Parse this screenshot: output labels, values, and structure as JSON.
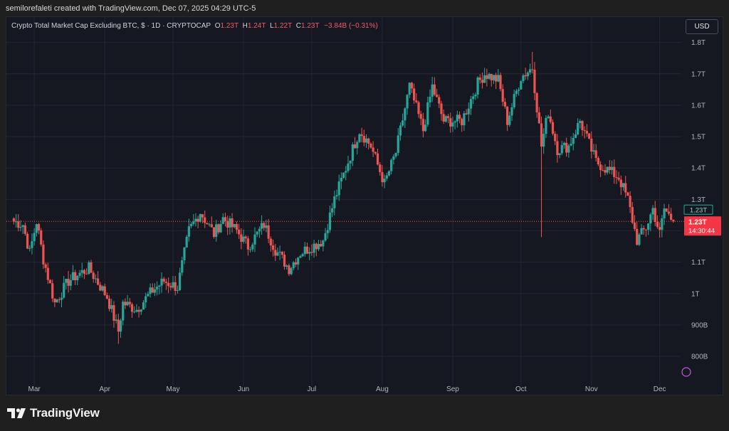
{
  "caption": "semilorefaleti created with TradingView.com, Dec 07, 2025 04:29 UTC-5",
  "legend": {
    "symbol": "Crypto Total Market Cap Excluding BTC, $ · 1D · CRYPTOCAP",
    "o_label": "O",
    "o_value": "1.23T",
    "h_label": "H",
    "h_value": "1.24T",
    "l_label": "L",
    "l_value": "1.22T",
    "c_label": "C",
    "c_value": "1.23T",
    "change": "−3.84B (−0.31%)"
  },
  "currency_button": "USD",
  "brand": "TradingView",
  "price_tags": {
    "prev_close": "1.23T",
    "last_price": "1.23T",
    "countdown": "14:30:44"
  },
  "chart_data": {
    "type": "candlestick",
    "x_ticks": [
      "Mar",
      "Apr",
      "May",
      "Jun",
      "Jul",
      "Aug",
      "Sep",
      "Oct",
      "Nov",
      "Dec"
    ],
    "y_ticks": [
      "800B",
      "900B",
      "1T",
      "1.1T",
      "1.2T",
      "1.3T",
      "1.4T",
      "1.5T",
      "1.6T",
      "1.7T",
      "1.8T"
    ],
    "y_tick_values": [
      0.8,
      0.9,
      1.0,
      1.1,
      1.2,
      1.3,
      1.4,
      1.5,
      1.6,
      1.7,
      1.8
    ],
    "ylim": [
      0.73,
      1.84
    ],
    "unit": "USD trillions",
    "last_value": 1.23,
    "colors": {
      "up": "#26a69a",
      "down": "#ef5350",
      "grid": "#232632",
      "axis_text": "#b2b5be"
    },
    "close_path": [
      {
        "date": "2025-02-20",
        "close": 1.23
      },
      {
        "date": "2025-02-24",
        "close": 1.22
      },
      {
        "date": "2025-02-27",
        "close": 1.13
      },
      {
        "date": "2025-03-02",
        "close": 1.23
      },
      {
        "date": "2025-03-05",
        "close": 1.11
      },
      {
        "date": "2025-03-10",
        "close": 0.97
      },
      {
        "date": "2025-03-16",
        "close": 1.04
      },
      {
        "date": "2025-03-20",
        "close": 1.06
      },
      {
        "date": "2025-03-25",
        "close": 1.08
      },
      {
        "date": "2025-04-02",
        "close": 0.99
      },
      {
        "date": "2025-04-07",
        "close": 0.88
      },
      {
        "date": "2025-04-09",
        "close": 0.97
      },
      {
        "date": "2025-04-15",
        "close": 0.95
      },
      {
        "date": "2025-04-22",
        "close": 1.01
      },
      {
        "date": "2025-04-27",
        "close": 1.04
      },
      {
        "date": "2025-05-03",
        "close": 1.02
      },
      {
        "date": "2025-05-08",
        "close": 1.2
      },
      {
        "date": "2025-05-13",
        "close": 1.26
      },
      {
        "date": "2025-05-19",
        "close": 1.19
      },
      {
        "date": "2025-05-23",
        "close": 1.24
      },
      {
        "date": "2025-05-29",
        "close": 1.2
      },
      {
        "date": "2025-06-03",
        "close": 1.15
      },
      {
        "date": "2025-06-10",
        "close": 1.22
      },
      {
        "date": "2025-06-15",
        "close": 1.14
      },
      {
        "date": "2025-06-21",
        "close": 1.08
      },
      {
        "date": "2025-06-26",
        "close": 1.13
      },
      {
        "date": "2025-07-01",
        "close": 1.15
      },
      {
        "date": "2025-07-06",
        "close": 1.17
      },
      {
        "date": "2025-07-11",
        "close": 1.3
      },
      {
        "date": "2025-07-16",
        "close": 1.4
      },
      {
        "date": "2025-07-22",
        "close": 1.52
      },
      {
        "date": "2025-07-27",
        "close": 1.47
      },
      {
        "date": "2025-08-02",
        "close": 1.35
      },
      {
        "date": "2025-08-07",
        "close": 1.45
      },
      {
        "date": "2025-08-13",
        "close": 1.66
      },
      {
        "date": "2025-08-19",
        "close": 1.52
      },
      {
        "date": "2025-08-23",
        "close": 1.66
      },
      {
        "date": "2025-08-28",
        "close": 1.55
      },
      {
        "date": "2025-09-05",
        "close": 1.55
      },
      {
        "date": "2025-09-12",
        "close": 1.67
      },
      {
        "date": "2025-09-15",
        "close": 1.7
      },
      {
        "date": "2025-09-21",
        "close": 1.68
      },
      {
        "date": "2025-09-25",
        "close": 1.55
      },
      {
        "date": "2025-10-01",
        "close": 1.69
      },
      {
        "date": "2025-10-06",
        "close": 1.72
      },
      {
        "date": "2025-10-10",
        "close": 1.47
      },
      {
        "date": "2025-10-13",
        "close": 1.58
      },
      {
        "date": "2025-10-17",
        "close": 1.46
      },
      {
        "date": "2025-10-22",
        "close": 1.47
      },
      {
        "date": "2025-10-27",
        "close": 1.55
      },
      {
        "date": "2025-11-03",
        "close": 1.42
      },
      {
        "date": "2025-11-07",
        "close": 1.4
      },
      {
        "date": "2025-11-13",
        "close": 1.37
      },
      {
        "date": "2025-11-17",
        "close": 1.3
      },
      {
        "date": "2025-11-21",
        "close": 1.17
      },
      {
        "date": "2025-11-25",
        "close": 1.21
      },
      {
        "date": "2025-11-28",
        "close": 1.27
      },
      {
        "date": "2025-12-01",
        "close": 1.19
      },
      {
        "date": "2025-12-03",
        "close": 1.27
      },
      {
        "date": "2025-12-07",
        "close": 1.23
      }
    ],
    "wick_extremes": [
      {
        "date": "2025-04-07",
        "low": 0.84
      },
      {
        "date": "2025-10-10",
        "low": 1.18
      },
      {
        "date": "2025-10-06",
        "high": 1.77
      }
    ]
  }
}
